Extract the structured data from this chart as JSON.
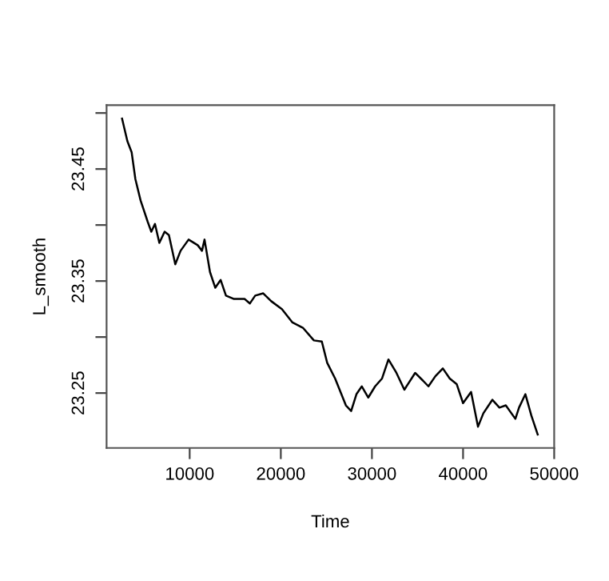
{
  "chart_data": {
    "type": "line",
    "xlabel": "Time",
    "ylabel": "L_smooth",
    "xlim": [
      880,
      50000
    ],
    "ylim": [
      23.201,
      23.507
    ],
    "xticks": [
      10000,
      20000,
      30000,
      40000,
      50000
    ],
    "yticks": [
      {
        "value": 23.25,
        "label": "23.25"
      },
      {
        "value": 23.3,
        "label": null
      },
      {
        "value": 23.35,
        "label": "23.35"
      },
      {
        "value": 23.4,
        "label": null
      },
      {
        "value": 23.45,
        "label": "23.45"
      },
      {
        "value": 23.5,
        "label": null
      }
    ],
    "grid": false,
    "marker": "none",
    "line_style": "solid",
    "series": [
      {
        "color": "#000000",
        "x": [
          2580,
          3160,
          3630,
          4040,
          4610,
          5390,
          5790,
          6190,
          6670,
          7250,
          7720,
          8420,
          9000,
          9880,
          10880,
          11350,
          11630,
          12230,
          12810,
          13400,
          13980,
          14860,
          16020,
          16610,
          17190,
          18070,
          18950,
          20120,
          21280,
          22460,
          23630,
          24500,
          25090,
          25960,
          27140,
          27720,
          28300,
          28890,
          29600,
          30350,
          31110,
          31810,
          32690,
          33560,
          34740,
          35610,
          36200,
          36960,
          37780,
          38540,
          39300,
          40000,
          40880,
          41640,
          42230,
          43220,
          43990,
          44690,
          45740,
          46140,
          46840,
          47490,
          48190
        ],
        "values": [
          23.495,
          23.475,
          23.465,
          23.441,
          23.422,
          23.403,
          23.394,
          23.401,
          23.384,
          23.394,
          23.391,
          23.365,
          23.377,
          23.387,
          23.382,
          23.377,
          23.387,
          23.358,
          23.344,
          23.351,
          23.337,
          23.334,
          23.334,
          23.33,
          23.337,
          23.339,
          23.332,
          23.325,
          23.313,
          23.308,
          23.297,
          23.296,
          23.277,
          23.263,
          23.239,
          23.234,
          23.249,
          23.256,
          23.246,
          23.256,
          23.263,
          23.28,
          23.268,
          23.253,
          23.268,
          23.261,
          23.256,
          23.265,
          23.272,
          23.263,
          23.258,
          23.241,
          23.251,
          23.22,
          23.232,
          23.244,
          23.237,
          23.239,
          23.227,
          23.237,
          23.249,
          23.23,
          23.213
        ]
      }
    ]
  }
}
